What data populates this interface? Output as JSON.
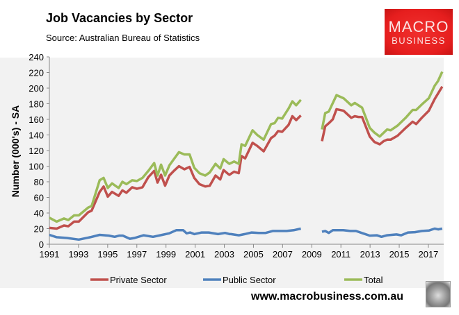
{
  "header": {
    "title": "Job Vacancies by Sector",
    "source": "Source: Australian Bureau of Statistics"
  },
  "logo": {
    "line1": "MACRO",
    "line2": "BUSINESS"
  },
  "footer": {
    "website": "www.macrobusiness.com.au"
  },
  "chart_data": {
    "type": "line",
    "title": "Job Vacancies by Sector",
    "xlabel": "",
    "ylabel": "Number (000's) - SA",
    "xlim": [
      1991,
      2018.2
    ],
    "ylim": [
      0,
      240
    ],
    "yticks": [
      0,
      20,
      40,
      60,
      80,
      100,
      120,
      140,
      160,
      180,
      200,
      220,
      240
    ],
    "xticks": [
      1991,
      1993,
      1995,
      1997,
      1999,
      2001,
      2003,
      2005,
      2007,
      2009,
      2011,
      2013,
      2015,
      2017
    ],
    "grid": false,
    "legend": "bottom",
    "background": "#f2f2f2",
    "series": [
      {
        "name": "Private Sector",
        "color": "#c0504d",
        "points": [
          [
            1991,
            21
          ],
          [
            1991.5,
            20
          ],
          [
            1992,
            24
          ],
          [
            1992.3,
            23
          ],
          [
            1992.7,
            29
          ],
          [
            1993.02,
            29
          ],
          [
            1993.66,
            41
          ],
          [
            1993.9,
            43
          ],
          [
            1994.45,
            67
          ],
          [
            1994.72,
            74
          ],
          [
            1995.01,
            61
          ],
          [
            1995.3,
            67
          ],
          [
            1995.75,
            62
          ],
          [
            1996.01,
            69
          ],
          [
            1996.28,
            66
          ],
          [
            1996.68,
            73
          ],
          [
            1997,
            71
          ],
          [
            1997.39,
            73
          ],
          [
            1997.79,
            86
          ],
          [
            1998.19,
            94
          ],
          [
            1998.42,
            79
          ],
          [
            1998.66,
            89
          ],
          [
            1998.94,
            75
          ],
          [
            1999.23,
            88
          ],
          [
            1999.54,
            94
          ],
          [
            1999.89,
            100
          ],
          [
            2000.26,
            96
          ],
          [
            2000.62,
            99
          ],
          [
            2000.94,
            85
          ],
          [
            2001.29,
            77
          ],
          [
            2001.69,
            74
          ],
          [
            2002,
            75
          ],
          [
            2002.4,
            88
          ],
          [
            2002.72,
            83
          ],
          [
            2002.95,
            95
          ],
          [
            2003.27,
            90
          ],
          [
            2003.35,
            89
          ],
          [
            2003.67,
            93
          ],
          [
            2003.99,
            91
          ],
          [
            2004.18,
            113
          ],
          [
            2004.43,
            110
          ],
          [
            2004.94,
            130
          ],
          [
            2005.26,
            126
          ],
          [
            2005.7,
            119
          ],
          [
            2006.21,
            136
          ],
          [
            2006.45,
            139
          ],
          [
            2006.69,
            145
          ],
          [
            2006.97,
            144
          ],
          [
            2007.41,
            153
          ],
          [
            2007.67,
            164
          ],
          [
            2007.93,
            159
          ],
          [
            2008.25,
            165
          ],
          null,
          [
            2009.7,
            132
          ],
          [
            2009.92,
            151
          ],
          [
            2010.17,
            155
          ],
          [
            2010.44,
            160
          ],
          [
            2010.7,
            173
          ],
          [
            2011.18,
            171
          ],
          [
            2011.71,
            162
          ],
          [
            2011.95,
            164
          ],
          [
            2012.2,
            163
          ],
          [
            2012.45,
            163
          ],
          [
            2012.98,
            138
          ],
          [
            2013.3,
            131
          ],
          [
            2013.66,
            128
          ],
          [
            2013.93,
            132
          ],
          [
            2014.17,
            134
          ],
          [
            2014.41,
            134
          ],
          [
            2014.89,
            139
          ],
          [
            2015.44,
            149
          ],
          [
            2015.92,
            157
          ],
          [
            2016.16,
            154
          ],
          [
            2016.55,
            162
          ],
          [
            2017.03,
            171
          ],
          [
            2017.43,
            186
          ],
          [
            2017.95,
            202
          ]
        ]
      },
      {
        "name": "Public Sector",
        "color": "#4f81bd",
        "points": [
          [
            1991,
            12
          ],
          [
            1991.5,
            9
          ],
          [
            1992.2,
            8
          ],
          [
            1993.02,
            6
          ],
          [
            1993.8,
            9
          ],
          [
            1994.45,
            12
          ],
          [
            1995.08,
            11
          ],
          [
            1995.48,
            9.5
          ],
          [
            1995.8,
            11
          ],
          [
            1996.04,
            11
          ],
          [
            1996.52,
            7
          ],
          [
            1996.84,
            8
          ],
          [
            1997.47,
            11.5
          ],
          [
            1998.11,
            9.5
          ],
          [
            1998.74,
            12
          ],
          [
            1999.22,
            14
          ],
          [
            1999.7,
            18
          ],
          [
            2000.18,
            18
          ],
          [
            2000.42,
            14
          ],
          [
            2000.66,
            15
          ],
          [
            2000.94,
            13
          ],
          [
            2001.45,
            15
          ],
          [
            2001.93,
            15
          ],
          [
            2002.57,
            13
          ],
          [
            2003.05,
            14.5
          ],
          [
            2003.37,
            13
          ],
          [
            2003.45,
            13
          ],
          [
            2004,
            11.5
          ],
          [
            2004.4,
            13
          ],
          [
            2004.88,
            15
          ],
          [
            2005.36,
            14.5
          ],
          [
            2005.84,
            14.5
          ],
          [
            2006.32,
            17
          ],
          [
            2006.8,
            17
          ],
          [
            2007.28,
            17
          ],
          [
            2007.76,
            18
          ],
          [
            2008.25,
            20
          ],
          null,
          [
            2009.7,
            16
          ],
          [
            2009.92,
            17
          ],
          [
            2010.17,
            14.5
          ],
          [
            2010.44,
            18
          ],
          [
            2011.16,
            18
          ],
          [
            2011.64,
            17
          ],
          [
            2012.03,
            17
          ],
          [
            2012.51,
            14
          ],
          [
            2012.98,
            11
          ],
          [
            2013.46,
            11.5
          ],
          [
            2013.78,
            9.5
          ],
          [
            2014.17,
            11.5
          ],
          [
            2014.81,
            12.5
          ],
          [
            2015.13,
            11.5
          ],
          [
            2015.6,
            15
          ],
          [
            2016.08,
            15.5
          ],
          [
            2016.56,
            17
          ],
          [
            2017.03,
            17.5
          ],
          [
            2017.43,
            20
          ],
          [
            2017.67,
            19
          ],
          [
            2017.95,
            20
          ]
        ]
      },
      {
        "name": "Total",
        "color": "#9bbb59",
        "points": [
          [
            1991,
            34
          ],
          [
            1991.5,
            29
          ],
          [
            1992,
            33
          ],
          [
            1992.3,
            31
          ],
          [
            1992.7,
            37
          ],
          [
            1993.02,
            37
          ],
          [
            1993.66,
            47
          ],
          [
            1993.9,
            49
          ],
          [
            1994.45,
            82
          ],
          [
            1994.72,
            85
          ],
          [
            1995.01,
            72
          ],
          [
            1995.3,
            78
          ],
          [
            1995.75,
            72
          ],
          [
            1996.01,
            80
          ],
          [
            1996.28,
            77
          ],
          [
            1996.68,
            82
          ],
          [
            1997,
            81
          ],
          [
            1997.39,
            85
          ],
          [
            1997.79,
            94
          ],
          [
            1998.19,
            104
          ],
          [
            1998.42,
            88
          ],
          [
            1998.66,
            102
          ],
          [
            1998.94,
            88
          ],
          [
            1999.23,
            101
          ],
          [
            1999.54,
            109
          ],
          [
            1999.89,
            118
          ],
          [
            2000.26,
            115
          ],
          [
            2000.62,
            115
          ],
          [
            2000.94,
            98
          ],
          [
            2001.29,
            91
          ],
          [
            2001.69,
            88
          ],
          [
            2002,
            92
          ],
          [
            2002.4,
            103
          ],
          [
            2002.72,
            97
          ],
          [
            2002.95,
            109
          ],
          [
            2003.27,
            104
          ],
          [
            2003.35,
            103
          ],
          [
            2003.67,
            106
          ],
          [
            2003.99,
            103
          ],
          [
            2004.18,
            128
          ],
          [
            2004.43,
            126
          ],
          [
            2004.94,
            146
          ],
          [
            2005.26,
            140
          ],
          [
            2005.7,
            134
          ],
          [
            2006.21,
            154
          ],
          [
            2006.45,
            155
          ],
          [
            2006.69,
            162
          ],
          [
            2006.97,
            161
          ],
          [
            2007.41,
            174
          ],
          [
            2007.67,
            183
          ],
          [
            2007.93,
            178
          ],
          [
            2008.25,
            185
          ],
          null,
          [
            2009.7,
            147
          ],
          [
            2009.92,
            168
          ],
          [
            2010.17,
            170
          ],
          [
            2010.7,
            191
          ],
          [
            2011.18,
            187
          ],
          [
            2011.71,
            178
          ],
          [
            2011.95,
            181
          ],
          [
            2012.45,
            175
          ],
          [
            2012.98,
            149
          ],
          [
            2013.3,
            143
          ],
          [
            2013.66,
            138
          ],
          [
            2014.17,
            147
          ],
          [
            2014.41,
            146
          ],
          [
            2014.89,
            152
          ],
          [
            2015.44,
            162
          ],
          [
            2015.92,
            172
          ],
          [
            2016.16,
            172
          ],
          [
            2016.55,
            179
          ],
          [
            2017.03,
            187
          ],
          [
            2017.43,
            203
          ],
          [
            2017.66,
            209
          ],
          [
            2017.95,
            221
          ]
        ]
      }
    ]
  }
}
